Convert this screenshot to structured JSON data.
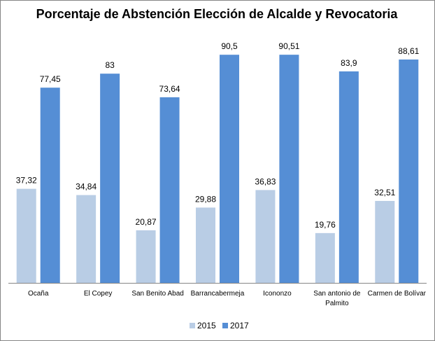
{
  "chart_data": {
    "type": "bar",
    "title": "Porcentaje de Abstención Elección de Alcalde y Revocatoria",
    "categories": [
      [
        "Ocaña"
      ],
      [
        "El Copey"
      ],
      [
        "San Benito Abad"
      ],
      [
        "Barrancabermeja"
      ],
      [
        "Icononzo"
      ],
      [
        "San antonio de",
        "Palmito"
      ],
      [
        "Carmen de Bolívar"
      ]
    ],
    "series": [
      {
        "name": "2015",
        "color": "#b9cde5",
        "values": [
          37.32,
          34.84,
          20.87,
          29.88,
          36.83,
          19.76,
          32.51
        ],
        "labels": [
          "37,32",
          "34,84",
          "20,87",
          "29,88",
          "36,83",
          "19,76",
          "32,51"
        ]
      },
      {
        "name": "2017",
        "color": "#558ed5",
        "values": [
          77.45,
          83,
          73.64,
          90.5,
          90.51,
          83.9,
          88.61
        ],
        "labels": [
          "77,45",
          "83",
          "73,64",
          "90,5",
          "90,51",
          "83,9",
          "88,61"
        ]
      }
    ],
    "ylim": [
      0,
      100
    ],
    "grid": false,
    "legend_position": "bottom"
  }
}
